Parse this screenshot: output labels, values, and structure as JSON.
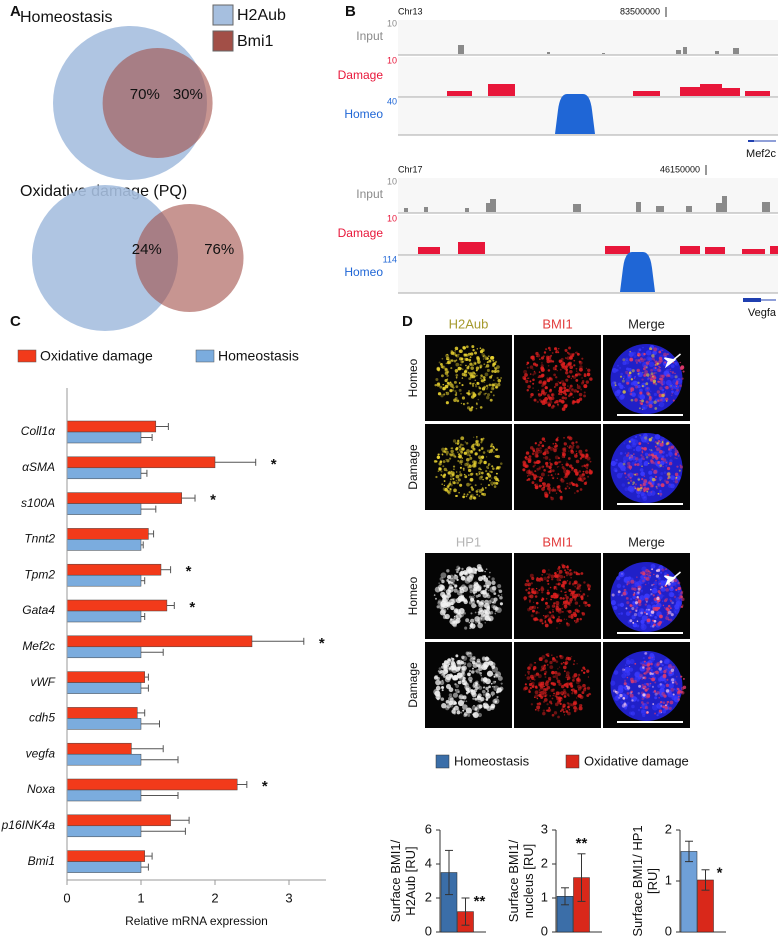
{
  "figure": {
    "panel_labels": [
      "A",
      "B",
      "C",
      "D"
    ]
  },
  "venn": {
    "legend": [
      {
        "name": "H2Aub",
        "color": "#a6bfdf"
      },
      {
        "name": "Bmi1",
        "color": "#a24f47"
      }
    ],
    "diagrams": [
      {
        "title": "Homeostasis",
        "values": [
          70,
          30
        ],
        "value_labels": [
          "70%",
          "30%"
        ]
      },
      {
        "title": "Oxidative damage (PQ)",
        "values": [
          24,
          76
        ],
        "value_labels": [
          "24%",
          "76%"
        ]
      }
    ]
  },
  "tracks": [
    {
      "chromosome": "Chr13",
      "coordinate": "83500000",
      "gene": "Mef2c",
      "rows": [
        {
          "name": "Input",
          "scale": "10",
          "color": "#8a8a8a"
        },
        {
          "name": "Damage",
          "scale": "10",
          "color": "#e8163a"
        },
        {
          "name": "Homeo",
          "scale": "40",
          "color": "#1f66d6"
        }
      ]
    },
    {
      "chromosome": "Chr17",
      "coordinate": "46150000",
      "gene": "Vegfa",
      "rows": [
        {
          "name": "Input",
          "scale": "10",
          "color": "#8a8a8a"
        },
        {
          "name": "Damage",
          "scale": "10",
          "color": "#e8163a"
        },
        {
          "name": "Homeo",
          "scale": "114",
          "color": "#1f66d6"
        }
      ]
    }
  ],
  "microscopy": {
    "blocks": [
      {
        "columns": [
          "H2Aub",
          "BMI1",
          "Merge"
        ],
        "rows": [
          "Homeo",
          "Damage"
        ]
      },
      {
        "columns": [
          "HP1",
          "BMI1",
          "Merge"
        ],
        "rows": [
          "Homeo",
          "Damage"
        ]
      }
    ]
  },
  "chart_data": [
    {
      "type": "bar",
      "orientation": "horizontal",
      "categories": [
        "Coll1α",
        "αSMA",
        "s100A",
        "Tnnt2",
        "Tpm2",
        "Gata4",
        "Mef2c",
        "vWF",
        "cdh5",
        "vegfa",
        "Noxa",
        "p16INK4a",
        "Bmi1"
      ],
      "series": [
        {
          "name": "Oxidative damage",
          "color": "#f23a1a",
          "values": [
            1.2,
            2.0,
            1.55,
            1.1,
            1.27,
            1.35,
            2.5,
            1.05,
            0.95,
            0.87,
            2.3,
            1.4,
            1.05
          ],
          "errors": [
            0.17,
            0.55,
            0.18,
            0.07,
            0.13,
            0.1,
            0.7,
            0.05,
            0.1,
            0.43,
            0.13,
            0.25,
            0.1
          ]
        },
        {
          "name": "Homeostasis",
          "color": "#7bacde",
          "values": [
            1,
            1,
            1,
            1,
            1,
            1,
            1,
            1,
            1,
            1,
            1,
            1,
            1
          ],
          "errors": [
            0.15,
            0.08,
            0.2,
            0.03,
            0.05,
            0.05,
            0.3,
            0.1,
            0.25,
            0.5,
            0.5,
            0.6,
            0.1
          ]
        }
      ],
      "significance": [
        null,
        "*",
        "*",
        null,
        "*",
        "*",
        "*",
        null,
        null,
        null,
        "*",
        null,
        null
      ],
      "xlim": [
        0,
        3.5
      ],
      "xticks": [
        0,
        1,
        2,
        3
      ],
      "xlabel": "Relative mRNA expression"
    },
    {
      "type": "bar",
      "ylabel": "Surface BMI1/ H2Aub [RU]",
      "series": [
        {
          "name": "Homeostasis",
          "color": "#3b6ea8",
          "values": [
            3.5
          ],
          "errors": [
            1.3
          ]
        },
        {
          "name": "Oxidative damage",
          "color": "#d9281a",
          "values": [
            1.2
          ],
          "errors": [
            0.8
          ]
        }
      ],
      "significance": "**",
      "ylim": [
        0,
        6
      ],
      "yticks": [
        0,
        2,
        4,
        6
      ]
    },
    {
      "type": "bar",
      "ylabel": "Surface BMI1/ nucleus [RU]",
      "series": [
        {
          "color": "#3b6ea8",
          "values": [
            1.05
          ],
          "errors": [
            0.25
          ]
        },
        {
          "color": "#d9281a",
          "values": [
            1.6
          ],
          "errors": [
            0.7
          ]
        }
      ],
      "significance": "**",
      "ylim": [
        0,
        3
      ],
      "yticks": [
        0,
        1,
        2,
        3
      ]
    },
    {
      "type": "bar",
      "ylabel": "Surface BMI1/ HP1 [RU]",
      "series": [
        {
          "color": "#6fa0d8",
          "values": [
            1.58
          ],
          "errors": [
            0.2
          ]
        },
        {
          "color": "#d9281a",
          "values": [
            1.02
          ],
          "errors": [
            0.2
          ]
        }
      ],
      "significance": "*",
      "ylim": [
        0,
        2
      ],
      "yticks": [
        0,
        1,
        2
      ]
    }
  ]
}
